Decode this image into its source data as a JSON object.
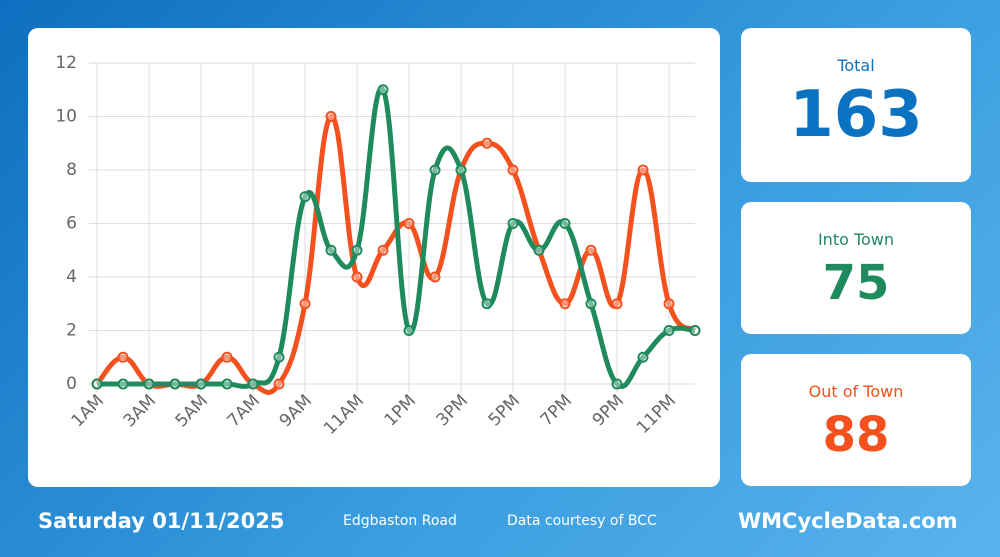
{
  "chart_data": {
    "type": "line",
    "categories": [
      "1AM",
      null,
      "3AM",
      null,
      "5AM",
      null,
      "7AM",
      null,
      "9AM",
      null,
      "11AM",
      null,
      "1PM",
      null,
      "3PM",
      null,
      "5PM",
      null,
      "7PM",
      null,
      "9PM",
      null,
      "11PM",
      null
    ],
    "series": [
      {
        "name": "Into Town",
        "color": "#1e8a5e",
        "values": [
          0,
          0,
          0,
          0,
          0,
          0,
          0,
          1,
          7,
          5,
          5,
          11,
          2,
          8,
          8,
          3,
          6,
          5,
          6,
          3,
          0,
          1,
          2,
          2
        ]
      },
      {
        "name": "Out of Town",
        "color": "#f4511e",
        "values": [
          0,
          1,
          0,
          0,
          0,
          1,
          0,
          0,
          3,
          10,
          4,
          5,
          6,
          4,
          8,
          9,
          8,
          5,
          3,
          5,
          3,
          8,
          3,
          2
        ]
      }
    ],
    "ylim": [
      0,
      12
    ],
    "yticks": [
      0,
      2,
      4,
      6,
      8,
      10,
      12
    ],
    "grid": true
  },
  "totals": {
    "label": "Total",
    "all": 163,
    "all_color": "#0a72c0",
    "into": 75,
    "out": 88
  },
  "footer": {
    "date": "Saturday 01/11/2025",
    "location": "Edgbaston Road",
    "credit": "Data courtesy of BCC",
    "site": "WMCycleData.com"
  }
}
